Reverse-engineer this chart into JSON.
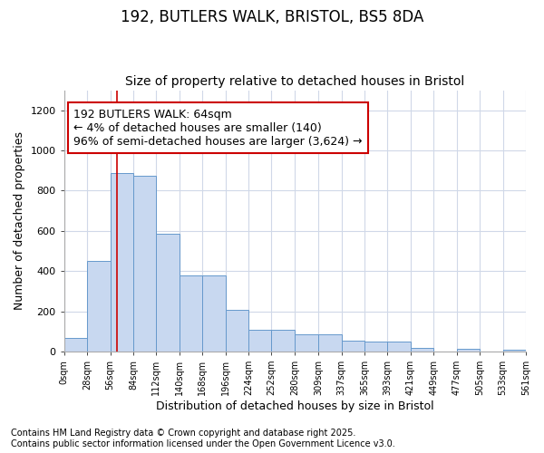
{
  "title1": "192, BUTLERS WALK, BRISTOL, BS5 8DA",
  "title2": "Size of property relative to detached houses in Bristol",
  "xlabel": "Distribution of detached houses by size in Bristol",
  "ylabel": "Number of detached properties",
  "bar_values": [
    65,
    450,
    890,
    875,
    585,
    380,
    380,
    205,
    110,
    110,
    85,
    85,
    52,
    48,
    48,
    17,
    0,
    13,
    0,
    8
  ],
  "bin_edges": [
    0,
    28,
    56,
    84,
    112,
    140,
    168,
    196,
    224,
    252,
    280,
    309,
    337,
    365,
    393,
    421,
    449,
    477,
    505,
    533,
    561
  ],
  "bar_color": "#c8d8f0",
  "bar_edge_color": "#6699cc",
  "property_line_x": 64,
  "property_line_color": "#cc0000",
  "ylim": [
    0,
    1300
  ],
  "yticks": [
    0,
    200,
    400,
    600,
    800,
    1000,
    1200
  ],
  "annotation_text": "192 BUTLERS WALK: 64sqm\n← 4% of detached houses are smaller (140)\n96% of semi-detached houses are larger (3,624) →",
  "annotation_box_color": "#ffffff",
  "annotation_box_edge_color": "#cc0000",
  "footnote1": "Contains HM Land Registry data © Crown copyright and database right 2025.",
  "footnote2": "Contains public sector information licensed under the Open Government Licence v3.0.",
  "background_color": "#ffffff",
  "grid_color": "#d0d8e8",
  "title_fontsize": 12,
  "subtitle_fontsize": 10,
  "label_fontsize": 9,
  "tick_fontsize": 8,
  "annotation_fontsize": 9,
  "footnote_fontsize": 7
}
